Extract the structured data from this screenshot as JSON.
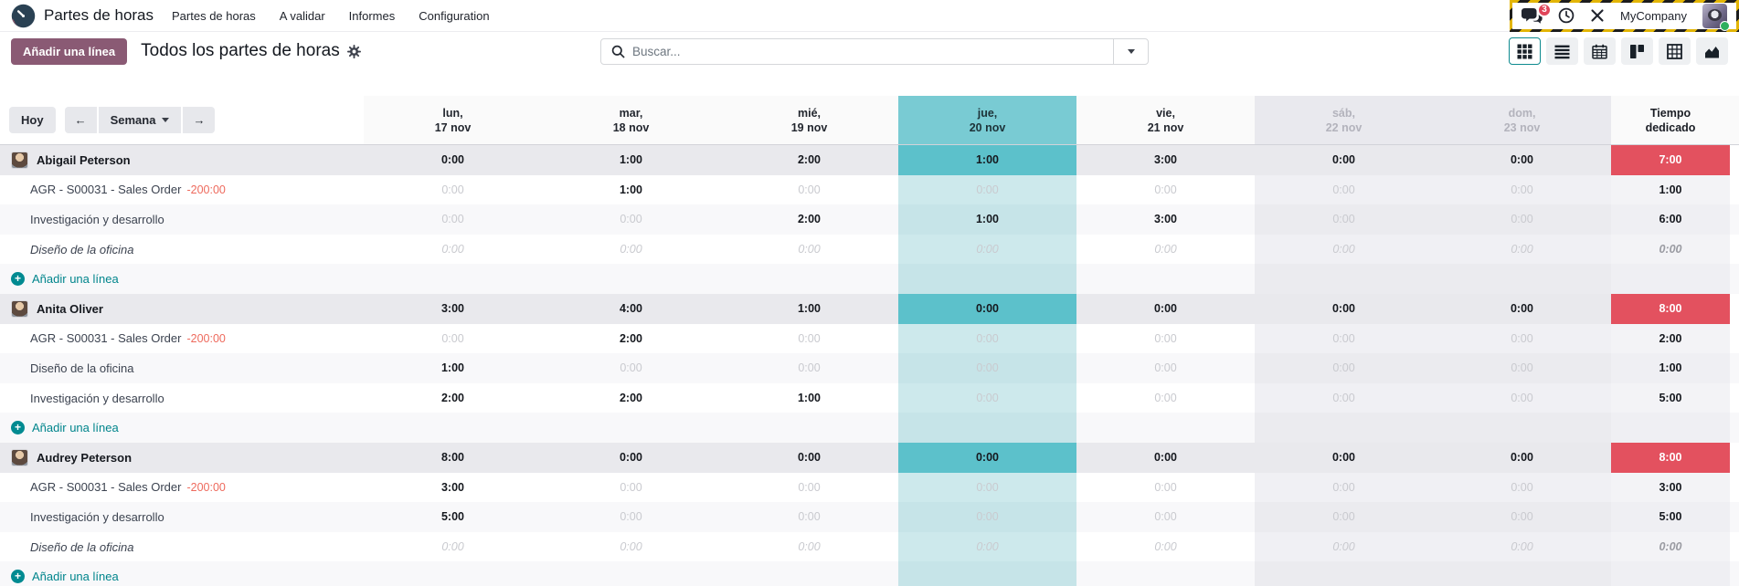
{
  "nav": {
    "brand": "Partes de horas",
    "menu": [
      "Partes de horas",
      "A validar",
      "Informes",
      "Configuration"
    ],
    "systray": {
      "badge": "3",
      "company": "MyCompany"
    }
  },
  "control_panel": {
    "add_button": "Añadir una línea",
    "title": "Todos los partes de horas",
    "search_placeholder": "Buscar...",
    "views": [
      "grid",
      "list",
      "calendar",
      "kanban",
      "pivot",
      "graph"
    ],
    "active_view": "grid"
  },
  "grid": {
    "toolbar": {
      "today": "Hoy",
      "range": "Semana"
    },
    "days": [
      {
        "line1": "lun,",
        "line2": "17 nov",
        "kind": "normal"
      },
      {
        "line1": "mar,",
        "line2": "18 nov",
        "kind": "normal"
      },
      {
        "line1": "mié,",
        "line2": "19 nov",
        "kind": "normal"
      },
      {
        "line1": "jue,",
        "line2": "20 nov",
        "kind": "today"
      },
      {
        "line1": "vie,",
        "line2": "21 nov",
        "kind": "normal"
      },
      {
        "line1": "sáb,",
        "line2": "22 nov",
        "kind": "weekend"
      },
      {
        "line1": "dom,",
        "line2": "23 nov",
        "kind": "weekend"
      }
    ],
    "total_header": {
      "line1": "Tiempo",
      "line2": "dedicado"
    },
    "add_line_label": "Añadir una línea",
    "colors": {
      "accent_teal": "#017e84",
      "today_header": "#79cbd3",
      "today_cell": "#cde9ec",
      "today_group_cell": "#5cc1cb",
      "danger_text": "#e14a34",
      "warning_text": "#b08d27",
      "total_danger_bg": "#e3515f",
      "muted_text": "#c9cacf",
      "weekend_bg": "#f0f0f4",
      "group_row_bg": "#e9e9ed",
      "button_purple": "#8a5a74"
    },
    "groups": [
      {
        "name": "Abigail Peterson",
        "header": {
          "values": [
            "0:00",
            "1:00",
            "2:00",
            "1:00",
            "3:00",
            "0:00",
            "0:00"
          ],
          "styles": [
            "d",
            "d",
            "d",
            "d",
            "k",
            "k",
            "k"
          ],
          "total": "7:00"
        },
        "rows": [
          {
            "label": "AGR - S00031 - Sales Order",
            "badge": "-200:00",
            "italic": false,
            "values": [
              "0:00",
              "1:00",
              "0:00",
              "0:00",
              "0:00",
              "0:00",
              "0:00"
            ],
            "styles": [
              "m",
              "k",
              "m",
              "m",
              "m",
              "m",
              "m"
            ],
            "total": "1:00",
            "total_style": "k"
          },
          {
            "label": "Investigación y desarrollo",
            "badge": null,
            "italic": false,
            "values": [
              "0:00",
              "0:00",
              "2:00",
              "1:00",
              "3:00",
              "0:00",
              "0:00"
            ],
            "styles": [
              "m",
              "m",
              "k",
              "k",
              "k",
              "m",
              "m"
            ],
            "total": "6:00",
            "total_style": "k"
          },
          {
            "label": "Diseño de la oficina",
            "badge": null,
            "italic": true,
            "values": [
              "0:00",
              "0:00",
              "0:00",
              "0:00",
              "0:00",
              "0:00",
              "0:00"
            ],
            "styles": [
              "i",
              "i",
              "i",
              "i",
              "i",
              "i",
              "i"
            ],
            "total": "0:00",
            "total_style": "i"
          }
        ]
      },
      {
        "name": "Anita Oliver",
        "header": {
          "values": [
            "3:00",
            "4:00",
            "1:00",
            "0:00",
            "0:00",
            "0:00",
            "0:00"
          ],
          "styles": [
            "d",
            "d",
            "d",
            "d",
            "k",
            "k",
            "k"
          ],
          "total": "8:00"
        },
        "rows": [
          {
            "label": "AGR - S00031 - Sales Order",
            "badge": "-200:00",
            "italic": false,
            "values": [
              "0:00",
              "2:00",
              "0:00",
              "0:00",
              "0:00",
              "0:00",
              "0:00"
            ],
            "styles": [
              "m",
              "k",
              "m",
              "m",
              "m",
              "m",
              "m"
            ],
            "total": "2:00",
            "total_style": "k"
          },
          {
            "label": "Diseño de la oficina",
            "badge": null,
            "italic": false,
            "values": [
              "1:00",
              "0:00",
              "0:00",
              "0:00",
              "0:00",
              "0:00",
              "0:00"
            ],
            "styles": [
              "k",
              "m",
              "m",
              "m",
              "m",
              "m",
              "m"
            ],
            "total": "1:00",
            "total_style": "k"
          },
          {
            "label": "Investigación y desarrollo",
            "badge": null,
            "italic": false,
            "values": [
              "2:00",
              "2:00",
              "1:00",
              "0:00",
              "0:00",
              "0:00",
              "0:00"
            ],
            "styles": [
              "k",
              "k",
              "k",
              "m",
              "m",
              "m",
              "m"
            ],
            "total": "5:00",
            "total_style": "k"
          }
        ]
      },
      {
        "name": "Audrey Peterson",
        "header": {
          "values": [
            "8:00",
            "0:00",
            "0:00",
            "0:00",
            "0:00",
            "0:00",
            "0:00"
          ],
          "styles": [
            "w",
            "d",
            "d",
            "d",
            "k",
            "k",
            "k"
          ],
          "total": "8:00"
        },
        "rows": [
          {
            "label": "AGR - S00031 - Sales Order",
            "badge": "-200:00",
            "italic": false,
            "values": [
              "3:00",
              "0:00",
              "0:00",
              "0:00",
              "0:00",
              "0:00",
              "0:00"
            ],
            "styles": [
              "k",
              "m",
              "m",
              "m",
              "m",
              "m",
              "m"
            ],
            "total": "3:00",
            "total_style": "k"
          },
          {
            "label": "Investigación y desarrollo",
            "badge": null,
            "italic": false,
            "values": [
              "5:00",
              "0:00",
              "0:00",
              "0:00",
              "0:00",
              "0:00",
              "0:00"
            ],
            "styles": [
              "k",
              "m",
              "m",
              "m",
              "m",
              "m",
              "m"
            ],
            "total": "5:00",
            "total_style": "k"
          },
          {
            "label": "Diseño de la oficina",
            "badge": null,
            "italic": true,
            "values": [
              "0:00",
              "0:00",
              "0:00",
              "0:00",
              "0:00",
              "0:00",
              "0:00"
            ],
            "styles": [
              "i",
              "i",
              "i",
              "i",
              "i",
              "i",
              "i"
            ],
            "total": "0:00",
            "total_style": "i"
          }
        ]
      }
    ]
  }
}
